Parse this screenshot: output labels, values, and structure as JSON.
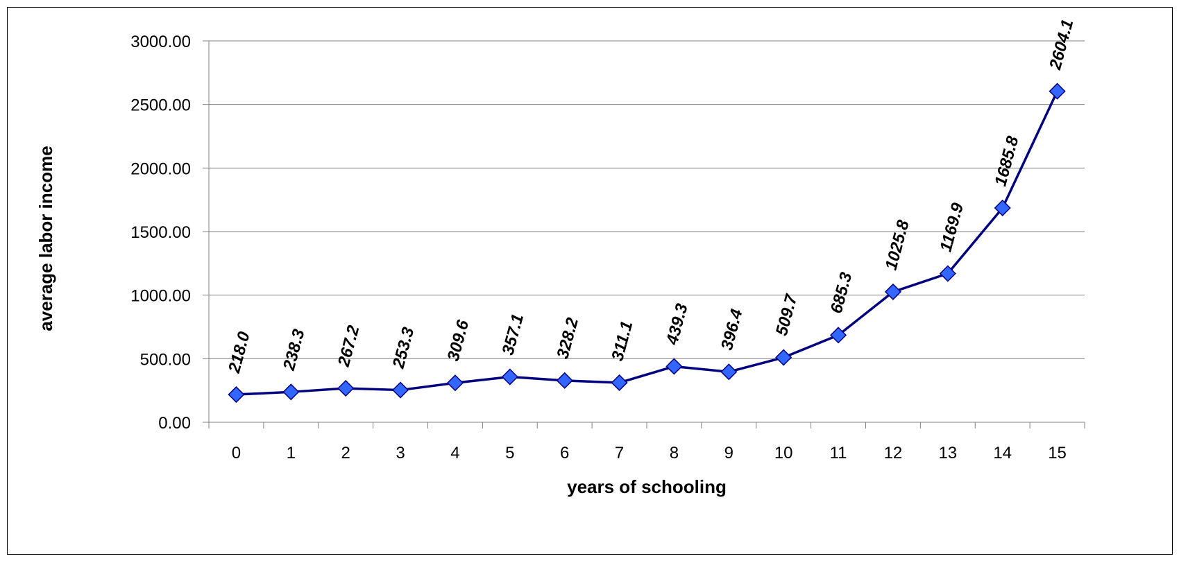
{
  "chart_data": {
    "type": "line",
    "title": "",
    "xlabel": "years of schooling",
    "ylabel": "average labor income",
    "categories": [
      "0",
      "1",
      "2",
      "3",
      "4",
      "5",
      "6",
      "7",
      "8",
      "9",
      "10",
      "11",
      "12",
      "13",
      "14",
      "15"
    ],
    "yticks": [
      "0.00",
      "500.00",
      "1000.00",
      "1500.00",
      "2000.00",
      "2500.00",
      "3000.00"
    ],
    "ylim": [
      0,
      3000
    ],
    "grid": "horizontal",
    "series": [
      {
        "values": [
          218.0,
          238.3,
          267.2,
          253.3,
          309.6,
          357.1,
          328.2,
          311.1,
          439.3,
          396.4,
          509.7,
          685.3,
          1025.8,
          1169.9,
          1685.8,
          2604.1
        ],
        "labels": [
          "218.0",
          "238.3",
          "267.2",
          "253.3",
          "309.6",
          "357.1",
          "328.2",
          "311.1",
          "439.3",
          "396.4",
          "509.7",
          "685.3",
          "1025.8",
          "1169.9",
          "1685.8",
          "2604.1"
        ],
        "line_color": "#00007F",
        "marker_color": "#3366FF",
        "marker_edge_color": "#00007F",
        "marker": "diamond"
      }
    ]
  }
}
